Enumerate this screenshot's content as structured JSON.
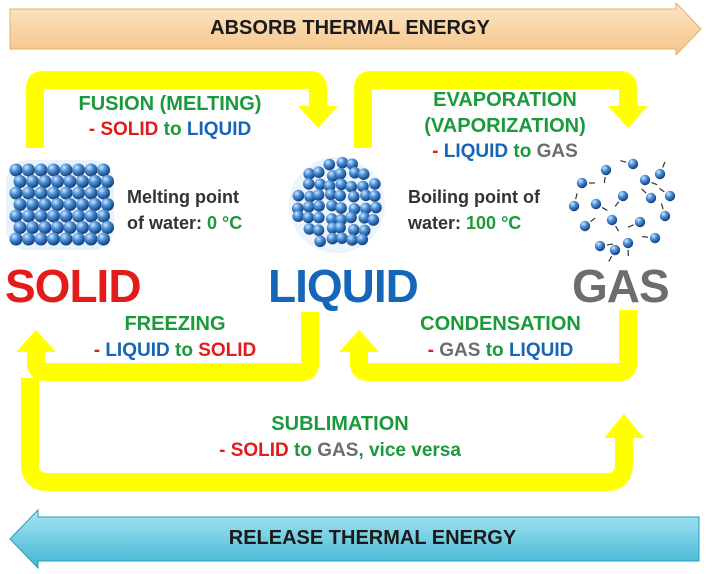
{
  "banners": {
    "top": "ABSORB THERMAL ENERGY",
    "bottom": "RELEASE THERMAL ENERGY"
  },
  "states": {
    "solid": "SOLID",
    "liquid": "LIQUID",
    "gas": "GAS"
  },
  "fusion": {
    "title": "FUSION (MELTING)",
    "dash": "- ",
    "from": "SOLID",
    "to_word": " to ",
    "to": "LIQUID"
  },
  "evaporation": {
    "title1": "EVAPORATION",
    "title2": "(VAPORIZATION)",
    "dash": "- ",
    "from": "LIQUID",
    "to_word": " to ",
    "to": "GAS"
  },
  "freezing": {
    "title": "FREEZING",
    "dash": "- ",
    "from": "LIQUID",
    "to_word": " to ",
    "to": "SOLID"
  },
  "condensation": {
    "title": "CONDENSATION",
    "dash": "- ",
    "from": "GAS",
    "to_word": " to ",
    "to": "LIQUID"
  },
  "sublimation": {
    "title": "SUBLIMATION",
    "dash": "- ",
    "from": "SOLID",
    "to_word": " to ",
    "to": "GAS",
    "suffix": ", vice versa"
  },
  "melting_point": {
    "line1": "Melting point",
    "line2_prefix": "of water: ",
    "value": "0 °C"
  },
  "boiling_point": {
    "line1": "Boiling point of",
    "line2_prefix": "water: ",
    "value": "100 °C"
  },
  "colors": {
    "solid": "#e21b1b",
    "liquid": "#1565b8",
    "gas": "#6d6d6d",
    "process": "#1a9a3a",
    "arrow": "#ffff00",
    "banner_top": "#fbd7a7",
    "banner_bottom": "#5cc7dd"
  },
  "icons": {
    "solid_cluster": "solid-particles-icon",
    "liquid_cluster": "liquid-particles-icon",
    "gas_cluster": "gas-particles-icon"
  }
}
